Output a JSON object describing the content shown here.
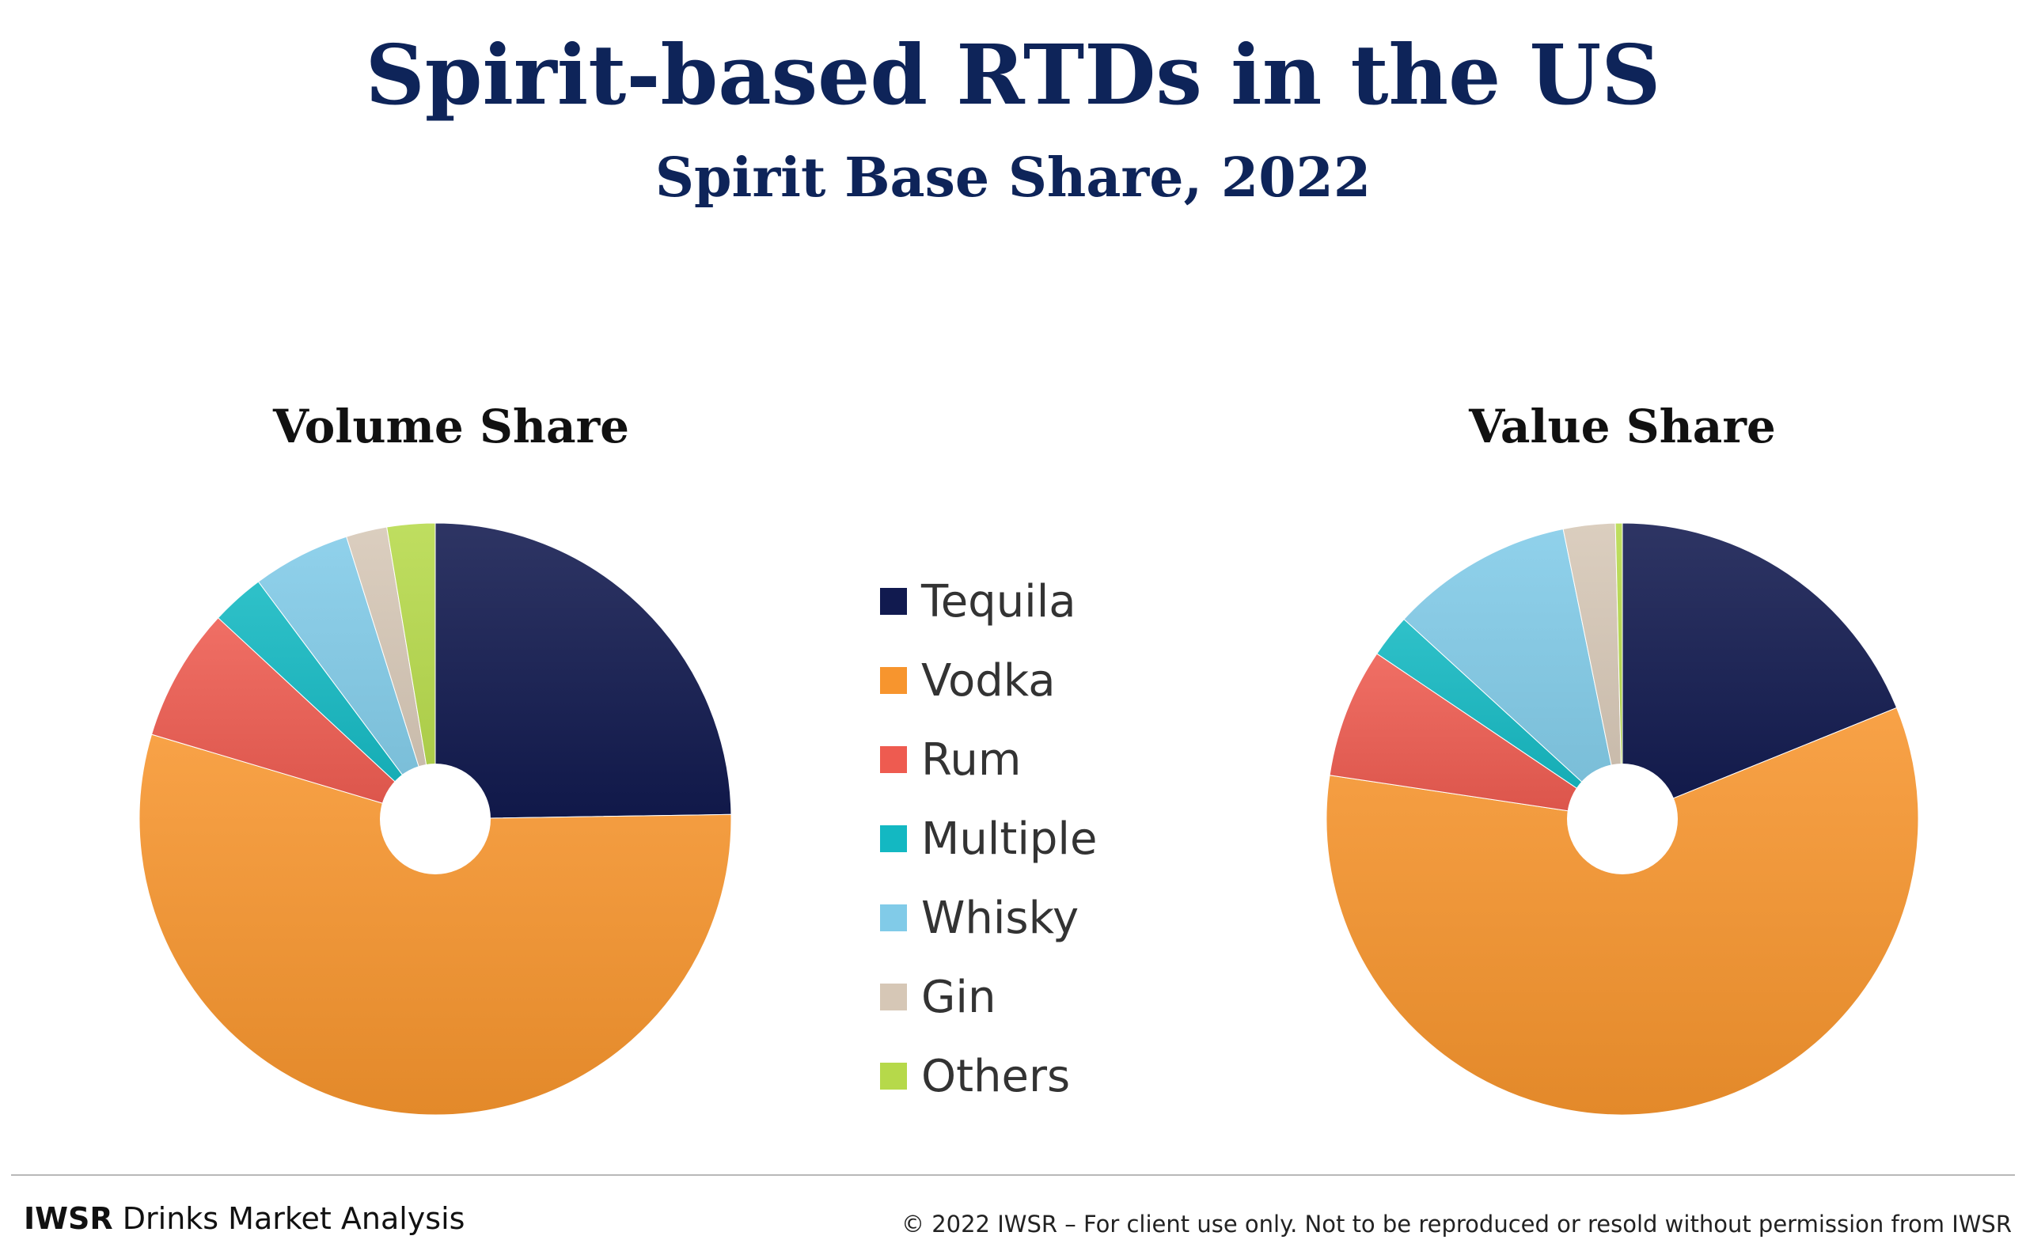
{
  "header": {
    "title": "Spirit-based RTDs in the US",
    "subtitle": "Spirit Base Share, 2022"
  },
  "chart_data": [
    {
      "type": "pie",
      "title": "Volume Share",
      "categories": [
        "Tequila",
        "Vodka",
        "Rum",
        "Multiple",
        "Whisky",
        "Gin",
        "Others"
      ],
      "values": [
        25.5,
        56.5,
        7.5,
        3,
        5.5,
        2.3,
        2.7
      ],
      "colors": [
        "#111a4f",
        "#f7952e",
        "#ee5b50",
        "#13b8c2",
        "#81cbe8",
        "#d6c7b6",
        "#b6d94a"
      ],
      "start_angle_deg": 0,
      "direction": "clockwise",
      "donut_hole": true
    },
    {
      "type": "pie",
      "title": "Value Share",
      "categories": [
        "Tequila",
        "Vodka",
        "Rum",
        "Multiple",
        "Whisky",
        "Gin",
        "Others"
      ],
      "values": [
        20,
        62,
        7.5,
        2.5,
        10.6,
        3,
        0.4
      ],
      "colors": [
        "#111a4f",
        "#f7952e",
        "#ee5b50",
        "#13b8c2",
        "#81cbe8",
        "#d6c7b6",
        "#b6d94a"
      ],
      "start_angle_deg": 0,
      "direction": "clockwise",
      "donut_hole": true
    }
  ],
  "legend": {
    "items": [
      {
        "label": "Tequila",
        "color": "#111a4f"
      },
      {
        "label": "Vodka",
        "color": "#f7952e"
      },
      {
        "label": "Rum",
        "color": "#ee5b50"
      },
      {
        "label": "Multiple",
        "color": "#13b8c2"
      },
      {
        "label": "Whisky",
        "color": "#81cbe8"
      },
      {
        "label": "Gin",
        "color": "#d6c7b6"
      },
      {
        "label": "Others",
        "color": "#b6d94a"
      }
    ]
  },
  "footer": {
    "brand": "IWSR",
    "brand_text": " Drinks Market Analysis",
    "copyright": "© 2022 IWSR – For client use only. Not to be reproduced or resold without permission from IWSR"
  }
}
